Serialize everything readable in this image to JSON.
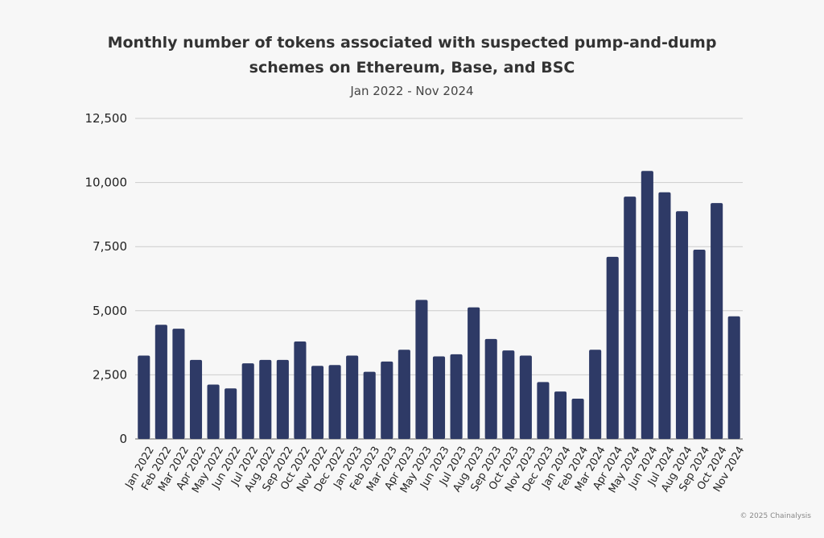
{
  "chart_data": {
    "type": "bar",
    "title_line1": "Monthly number of tokens associated with suspected pump-and-dump",
    "title_line2": "schemes on Ethereum, Base, and BSC",
    "subtitle": "Jan 2022 - Nov 2024",
    "xlabel": "",
    "ylabel": "",
    "ylim": [
      0,
      12500
    ],
    "yticks": [
      "0",
      "2,500",
      "5,000",
      "7,500",
      "10,000",
      "12,500"
    ],
    "grid": true,
    "bar_color": "#2e3a66",
    "categories": [
      "Jan 2022",
      "Feb 2022",
      "Mar 2022",
      "Apr 2022",
      "May 2022",
      "Jun 2022",
      "Jul 2022",
      "Aug 2022",
      "Sep 2022",
      "Oct 2022",
      "Nov 2022",
      "Dec 2022",
      "Jan 2023",
      "Feb 2023",
      "Mar 2023",
      "Apr 2023",
      "May 2023",
      "Jun 2023",
      "Jul 2023",
      "Aug 2023",
      "Sep 2023",
      "Oct 2023",
      "Nov 2023",
      "Dec 2023",
      "Jan 2024",
      "Feb 2024",
      "Mar 2024",
      "Apr 2024",
      "May 2024",
      "Jun 2024",
      "Jul 2024",
      "Aug 2024",
      "Sep 2024",
      "Oct 2024",
      "Nov 2024"
    ],
    "values": [
      3250,
      4450,
      4300,
      3080,
      2120,
      1970,
      2950,
      3080,
      3080,
      3800,
      2850,
      2880,
      3250,
      2620,
      3020,
      3480,
      5420,
      3220,
      3300,
      5130,
      3900,
      3450,
      3250,
      2220,
      1850,
      1570,
      3480,
      7100,
      9450,
      10450,
      9620,
      8880,
      7380,
      9200,
      4780
    ]
  },
  "footer": {
    "copyright": "© 2025 Chainalysis"
  }
}
